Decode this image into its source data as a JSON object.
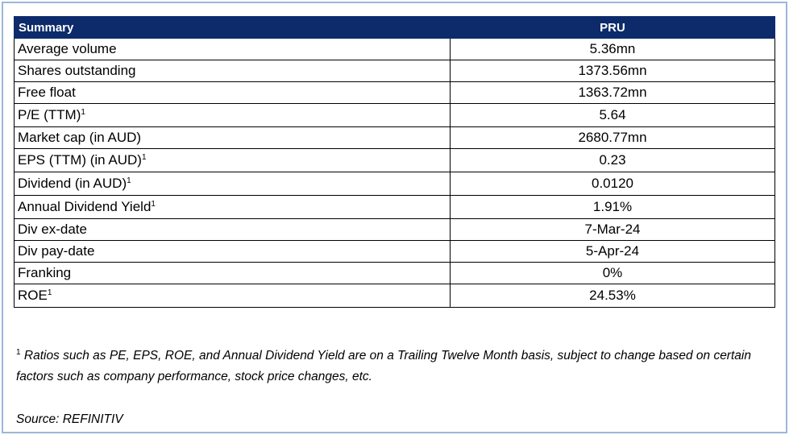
{
  "table": {
    "header": {
      "label": "Summary",
      "ticker": "PRU"
    },
    "rows": [
      {
        "label": "Average volume",
        "sup": "",
        "value": "5.36mn"
      },
      {
        "label": "Shares outstanding",
        "sup": "",
        "value": "1373.56mn"
      },
      {
        "label": "Free float",
        "sup": "",
        "value": "1363.72mn"
      },
      {
        "label": "P/E (TTM)",
        "sup": "1",
        "value": "5.64"
      },
      {
        "label": "Market cap (in AUD)",
        "sup": "",
        "value": "2680.77mn"
      },
      {
        "label": "EPS (TTM) (in AUD)",
        "sup": "1",
        "value": "0.23"
      },
      {
        "label": "Dividend (in AUD)",
        "sup": "1",
        "value": "0.0120"
      },
      {
        "label": "Annual Dividend Yield",
        "sup": "1",
        "value": "1.91%"
      },
      {
        "label": "Div ex-date",
        "sup": "",
        "value": "7-Mar-24"
      },
      {
        "label": "Div pay-date",
        "sup": "",
        "value": "5-Apr-24"
      },
      {
        "label": "Franking",
        "sup": "",
        "value": "0%"
      },
      {
        "label": "ROE",
        "sup": "1",
        "value": "24.53%"
      }
    ]
  },
  "footnote": {
    "marker": "1",
    "text": "Ratios such as PE, EPS, ROE, and Annual Dividend Yield are on a Trailing Twelve Month basis, subject to change based on certain factors such as company performance, stock price changes, etc."
  },
  "source": "Source: REFINITIV",
  "colors": {
    "header_bg": "#0d2a6b",
    "frame_border": "#9cb7da"
  }
}
